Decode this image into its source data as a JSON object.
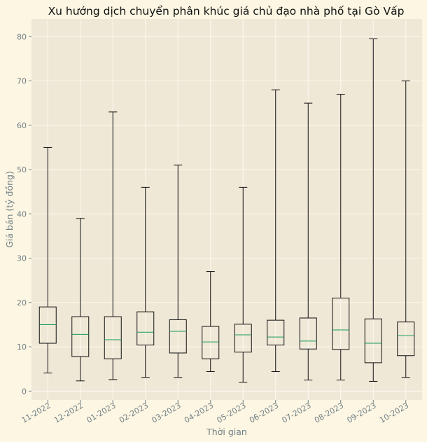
{
  "chart_data": {
    "type": "box",
    "title": "Xu hướng dịch chuyển phân khúc giá chủ đạo nhà phố tại Gò Vấp",
    "xlabel": "Thời gian",
    "ylabel": "Giá bán (tỷ đồng)",
    "ylim": [
      -2,
      84
    ],
    "yticks": [
      0,
      10,
      20,
      30,
      40,
      50,
      60,
      70,
      80
    ],
    "grid": true,
    "categories": [
      "11-2022",
      "12-2022",
      "01-2023",
      "02-2023",
      "03-2023",
      "04-2023",
      "05-2023",
      "06-2023",
      "07-2023",
      "08-2023",
      "09-2023",
      "10-2023"
    ],
    "boxes": [
      {
        "min": 4.1,
        "q1": 10.8,
        "median": 15.0,
        "q3": 19.0,
        "max": 55.0
      },
      {
        "min": 2.3,
        "q1": 7.8,
        "median": 12.8,
        "q3": 16.8,
        "max": 39.0
      },
      {
        "min": 2.6,
        "q1": 7.3,
        "median": 11.6,
        "q3": 16.8,
        "max": 63.0
      },
      {
        "min": 3.1,
        "q1": 10.4,
        "median": 13.3,
        "q3": 17.9,
        "max": 46.0
      },
      {
        "min": 3.1,
        "q1": 8.6,
        "median": 13.5,
        "q3": 16.1,
        "max": 51.0
      },
      {
        "min": 4.4,
        "q1": 7.3,
        "median": 11.1,
        "q3": 14.6,
        "max": 27.0
      },
      {
        "min": 2.0,
        "q1": 8.8,
        "median": 12.7,
        "q3": 15.1,
        "max": 46.0
      },
      {
        "min": 4.4,
        "q1": 10.4,
        "median": 12.2,
        "q3": 16.0,
        "max": 68.0
      },
      {
        "min": 2.5,
        "q1": 9.5,
        "median": 11.3,
        "q3": 16.5,
        "max": 65.0
      },
      {
        "min": 2.5,
        "q1": 9.4,
        "median": 13.8,
        "q3": 21.0,
        "max": 67.0
      },
      {
        "min": 2.2,
        "q1": 6.4,
        "median": 10.8,
        "q3": 16.3,
        "max": 79.5
      },
      {
        "min": 3.1,
        "q1": 8.0,
        "median": 12.5,
        "q3": 15.6,
        "max": 70.0
      }
    ],
    "colors": {
      "page_bg": "#fdf6e3",
      "plot_bg": "#efe8d6",
      "grid": "#fbf8f1",
      "box_stroke": "#111111",
      "median": "#1a9a5a",
      "tick_text": "#6f7f85"
    }
  }
}
